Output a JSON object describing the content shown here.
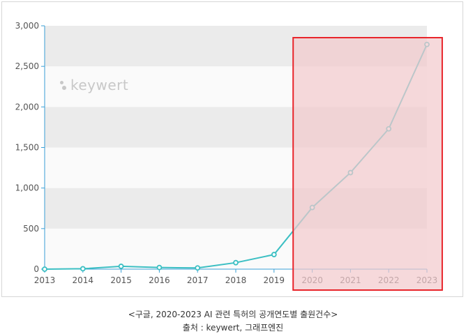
{
  "chart_data": {
    "type": "line",
    "x": [
      "2013",
      "2014",
      "2015",
      "2016",
      "2017",
      "2018",
      "2019",
      "2020",
      "2021",
      "2022",
      "2023"
    ],
    "series": [
      {
        "values": [
          0,
          5,
          35,
          20,
          15,
          80,
          180,
          760,
          1190,
          1730,
          2770
        ]
      }
    ],
    "ylim": [
      0,
      3000
    ],
    "yticks": [
      "0",
      "500",
      "1,000",
      "1,500",
      "2,000",
      "2,500",
      "3,000"
    ],
    "highlight_range": [
      "2020",
      "2023"
    ],
    "grid": "alternating-bands",
    "colors": {
      "line": "#3bbfc3",
      "highlight_fill": "#f2c9cc",
      "highlight_border": "#e8252b",
      "band": "#ebebeb"
    }
  },
  "watermark": "keywert",
  "caption": {
    "line1": "<구글, 2020-2023 AI 관련 특허의 공개연도별 출원건수>",
    "line2": "출처 : keywert, 그래프엔진"
  }
}
